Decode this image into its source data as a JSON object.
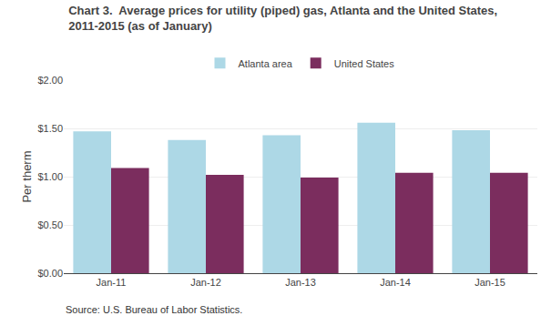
{
  "chart_data": {
    "type": "bar",
    "title": "Chart 3.  Average prices for utility (piped) gas, Atlanta and the United States,\n2011-2015 (as of January)",
    "ylabel": "Per therm",
    "annotations": [
      "Source: U.S. Bureau of Labor Statistics."
    ],
    "categories": [
      "Jan-11",
      "Jan-12",
      "Jan-13",
      "Jan-14",
      "Jan-15"
    ],
    "series": [
      {
        "name": "Atlanta area",
        "color": "#ADD8E6",
        "values": [
          1.47,
          1.38,
          1.43,
          1.56,
          1.48
        ]
      },
      {
        "name": "United States",
        "color": "#7B2D5E",
        "values": [
          1.09,
          1.02,
          0.99,
          1.04,
          1.04
        ]
      }
    ],
    "ylim": [
      0.0,
      2.0
    ],
    "yticks": [
      {
        "value": 0.0,
        "label": "$0.00"
      },
      {
        "value": 0.5,
        "label": "$0.50"
      },
      {
        "value": 1.0,
        "label": "$1.00"
      },
      {
        "value": 1.5,
        "label": "$1.50"
      },
      {
        "value": 2.0,
        "label": "$2.00"
      }
    ],
    "grid": true,
    "legend": "top"
  }
}
